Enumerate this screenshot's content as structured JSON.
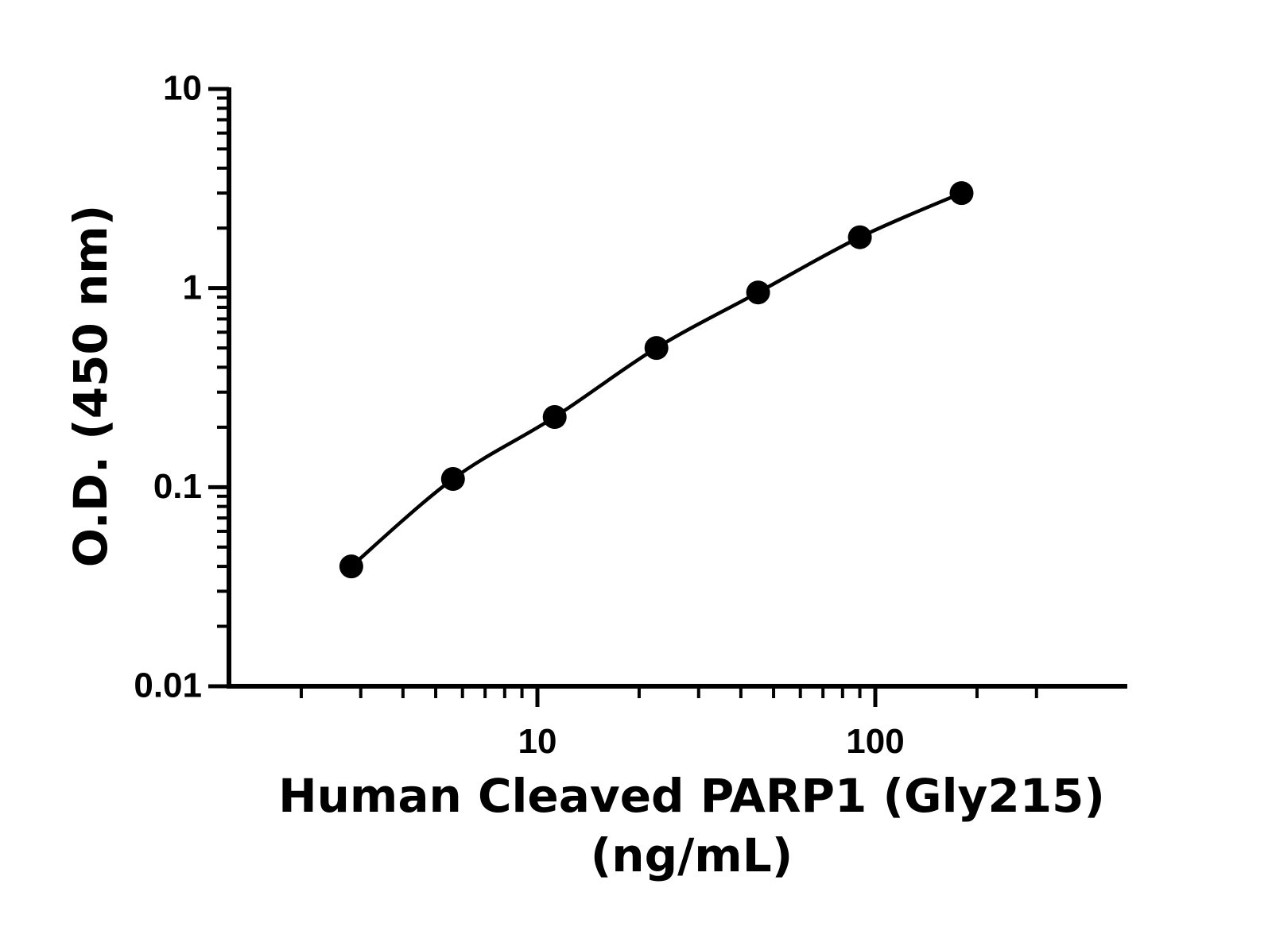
{
  "chart_data": {
    "type": "scatter",
    "title": "",
    "xlabel_lines": [
      "Human Cleaved PARP1 (Gly215)",
      "(ng/mL)"
    ],
    "ylabel": "O.D. (450 nm)",
    "x_scale": "log",
    "y_scale": "log",
    "xlim": [
      1,
      600
    ],
    "ylim": [
      0.01,
      10
    ],
    "x_tick_labels": [
      {
        "value": 10,
        "label": "10"
      },
      {
        "value": 100,
        "label": "100"
      }
    ],
    "y_tick_labels": [
      {
        "value": 0.01,
        "label": "0.01"
      },
      {
        "value": 0.1,
        "label": "0.1"
      },
      {
        "value": 1,
        "label": "1"
      },
      {
        "value": 10,
        "label": "10"
      }
    ],
    "grid": false,
    "legend": "none",
    "series": [
      {
        "marker": "filled-circle",
        "color": "#000000",
        "fit_line": true,
        "x": [
          2.8125,
          5.625,
          11.25,
          22.5,
          45,
          90,
          180
        ],
        "y": [
          0.04,
          0.11,
          0.225,
          0.5,
          0.95,
          1.8,
          3.0
        ]
      }
    ]
  }
}
